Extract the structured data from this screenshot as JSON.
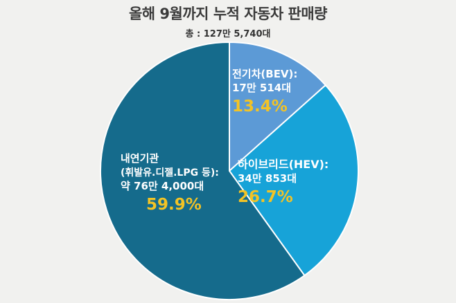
{
  "chart_data": {
    "type": "pie",
    "title": "올해 9월까지 누적 자동차 판매량",
    "subtitle": "총 : 127만 5,740대",
    "slices": [
      {
        "name": "전기차(BEV):",
        "value_text": "17만 514대",
        "percent": 13.4,
        "percent_text": "13.4%",
        "color": "#5c9ad6"
      },
      {
        "name": "하이브리드(HEV):",
        "value_text": "34만 853대",
        "percent": 26.7,
        "percent_text": "26.7%",
        "color": "#17a3d8"
      },
      {
        "name": "내연기관",
        "name2": "(휘발유.디젤.LPG 등):",
        "value_text": "약 76만 4,000대",
        "percent": 59.9,
        "percent_text": "59.9%",
        "color": "#156b8c"
      }
    ]
  }
}
